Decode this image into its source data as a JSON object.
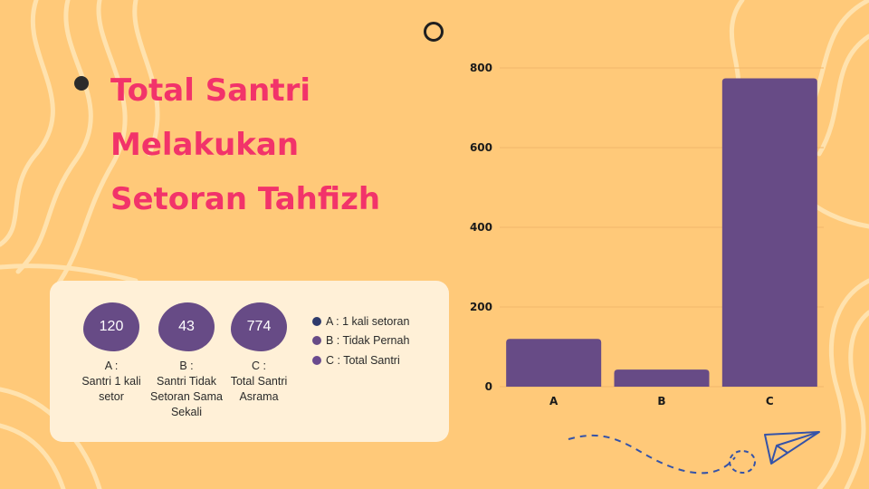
{
  "title": "Total Santri Melakukan Setoran Tahfizh",
  "stats": [
    {
      "value": "120",
      "label": "A :\nSantri 1 kali\nsetor"
    },
    {
      "value": "43",
      "label": "B :\nSantri Tidak\nSetoran Sama\nSekali"
    },
    {
      "value": "774",
      "label": "C :\nTotal Santri\nAsrama"
    }
  ],
  "legend": [
    {
      "label": "A : 1 kali setoran",
      "color": "#2E3A6B"
    },
    {
      "label": "B : Tidak Pernah",
      "color": "#674B86"
    },
    {
      "label": "C : Total Santri",
      "color": "#6A4A8E"
    }
  ],
  "colors": {
    "background": "#FFC979",
    "title": "#F2336A",
    "bar": "#674B86",
    "card": "#FFF0D7"
  },
  "icons": [
    "ring-icon",
    "bullet-icon",
    "paper-plane-icon"
  ],
  "chart_data": {
    "type": "bar",
    "categories": [
      "A",
      "B",
      "C"
    ],
    "values": [
      120,
      43,
      774
    ],
    "ylim": [
      0,
      800
    ],
    "yticks": [
      0,
      200,
      400,
      600,
      800
    ],
    "grid": true,
    "title": "",
    "xlabel": "",
    "ylabel": ""
  }
}
